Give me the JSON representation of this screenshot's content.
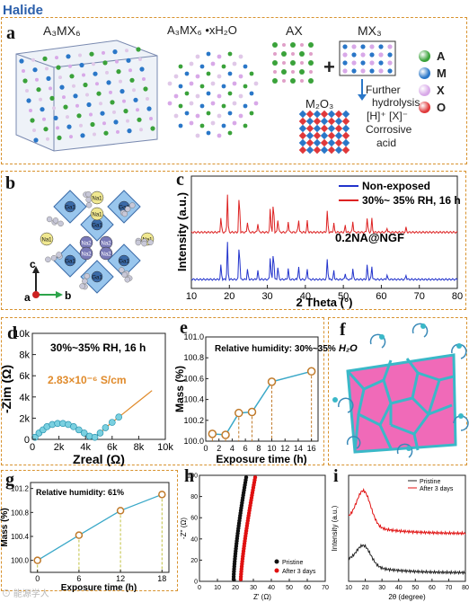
{
  "header": "Halide",
  "panel_letters": [
    "a",
    "b",
    "c",
    "d",
    "e",
    "f",
    "g",
    "h",
    "i"
  ],
  "panel_a": {
    "labels": [
      "A₃MX₆",
      "A₃MX₆ •xH₂O",
      "AX",
      "MX₃",
      "M₂O₃"
    ],
    "plus": "+",
    "hydrolysis": [
      "Further",
      "hydrolysis"
    ],
    "acid": [
      "[H]⁺  [X]⁻",
      "Corrosive",
      "acid"
    ],
    "legend": [
      {
        "label": "A",
        "color": "#3aa23a"
      },
      {
        "label": "M",
        "color": "#2a77c8"
      },
      {
        "label": "X",
        "color": "#d8a8e8"
      },
      {
        "label": "O",
        "color": "#e0383a"
      }
    ]
  },
  "panel_b": {
    "axis": {
      "c": "c",
      "a": "a",
      "b": "b"
    },
    "atoms": [
      "Ga1",
      "Ga1",
      "Ga1",
      "Ga1",
      "Ga1",
      "Ga1",
      "Na1",
      "Na2",
      "Na2",
      "Na1",
      "Na1",
      "Na1",
      "Na2",
      "Na2"
    ]
  },
  "chart_c": {
    "type": "line",
    "xlabel": "2 Theta (°)",
    "ylabel": "Intensity (a.u.)",
    "xlim": [
      10,
      80
    ],
    "xticks": [
      10,
      20,
      30,
      40,
      50,
      60,
      70,
      80
    ],
    "annotation": "0.2NA@NGF",
    "series": [
      {
        "name": "Non-exposed",
        "color": "#2233cc"
      },
      {
        "name": "30%~ 35% RH, 16 h",
        "color": "#dd2222"
      }
    ],
    "peaks": [
      {
        "x": 17.8,
        "h": 0.35
      },
      {
        "x": 19.5,
        "h": 0.85
      },
      {
        "x": 22.6,
        "h": 0.95
      },
      {
        "x": 24.8,
        "h": 0.25
      },
      {
        "x": 27.5,
        "h": 0.2
      },
      {
        "x": 30.8,
        "h": 0.55
      },
      {
        "x": 31.6,
        "h": 0.75
      },
      {
        "x": 32.8,
        "h": 0.3
      },
      {
        "x": 35.5,
        "h": 0.25
      },
      {
        "x": 38.2,
        "h": 0.3
      },
      {
        "x": 40.5,
        "h": 0.25
      },
      {
        "x": 45.8,
        "h": 0.5
      },
      {
        "x": 47.5,
        "h": 0.2
      },
      {
        "x": 50.5,
        "h": 0.15
      },
      {
        "x": 52.5,
        "h": 0.25
      },
      {
        "x": 56.3,
        "h": 0.35
      },
      {
        "x": 57.5,
        "h": 0.3
      },
      {
        "x": 61.5,
        "h": 0.1
      },
      {
        "x": 66.5,
        "h": 0.1
      }
    ]
  },
  "chart_d": {
    "type": "scatter",
    "title": "30%~35% RH, 16 h",
    "annotation": "2.83×10⁻⁶ S/cm",
    "xlabel": "Zreal (Ω)",
    "ylabel": "-Zim (Ω)",
    "xlim": [
      0,
      10000
    ],
    "ylim": [
      0,
      10000
    ],
    "xtick_labels": [
      "0",
      "2k",
      "4k",
      "6k",
      "8k",
      "10k"
    ],
    "ytick_labels": [
      "0",
      "2k",
      "4k",
      "6k",
      "8k",
      "10k"
    ],
    "x": [
      200,
      500,
      800,
      1100,
      1500,
      1900,
      2300,
      2700,
      3100,
      3500,
      3900,
      4300,
      4700,
      5100,
      5500,
      6000,
      6500,
      7000,
      7500,
      8000,
      8500,
      9000
    ],
    "y": [
      200,
      600,
      900,
      1200,
      1400,
      1500,
      1500,
      1400,
      1200,
      900,
      600,
      300,
      200,
      600,
      1100,
      1600,
      2100,
      2600,
      3100,
      3600,
      4100,
      4600
    ]
  },
  "chart_e": {
    "type": "line",
    "title": "Relative humidity: 30%~35%",
    "xlabel": "Exposure time (h)",
    "ylabel": "Mass (%)",
    "xlim": [
      0,
      17
    ],
    "ylim": [
      100.0,
      101.0
    ],
    "xticks": [
      0,
      2,
      4,
      6,
      8,
      10,
      12,
      14,
      16
    ],
    "ytick_labels": [
      "100.0",
      "100.2",
      "100.4",
      "100.6",
      "100.8",
      "101.0"
    ],
    "x": [
      1,
      3,
      5,
      7,
      10,
      16
    ],
    "y": [
      100.07,
      100.06,
      100.27,
      100.28,
      100.57,
      100.67
    ]
  },
  "panel_f": {
    "label": "H₂O"
  },
  "chart_g": {
    "type": "line",
    "title": "Relative humidity: 61%",
    "xlabel": "Exposure time (h)",
    "ylabel": "Mass (%)",
    "xlim": [
      -1,
      19
    ],
    "ylim": [
      99.8,
      101.3
    ],
    "xticks": [
      0,
      6,
      12,
      18
    ],
    "ytick_labels": [
      "100.0",
      "100.4",
      "100.8",
      "101.2"
    ],
    "x": [
      0,
      6,
      12,
      18
    ],
    "y": [
      100.0,
      100.42,
      100.83,
      101.1
    ]
  },
  "chart_h": {
    "type": "scatter",
    "xlabel": "Z' (Ω)",
    "ylabel": "-Z'' (Ω)",
    "xlim": [
      0,
      70
    ],
    "ylim": [
      0,
      100
    ],
    "xticks": [
      0,
      10,
      20,
      30,
      40,
      50,
      60,
      70
    ],
    "yticks": [
      0,
      20,
      40,
      60,
      80,
      100
    ],
    "series": [
      {
        "name": "Pristine",
        "color": "#111111"
      },
      {
        "name": "After 3 days",
        "color": "#e01010"
      }
    ]
  },
  "chart_i": {
    "type": "line",
    "xlabel": "2θ (degree)",
    "ylabel": "Intensity (a.u.)",
    "xlim": [
      10,
      80
    ],
    "xticks": [
      10,
      20,
      30,
      40,
      50,
      60,
      70,
      80
    ],
    "series": [
      {
        "name": "Pristine",
        "color": "#222222"
      },
      {
        "name": "After 3 days",
        "color": "#e01010"
      }
    ]
  },
  "watermark": "⊙ 能源学人"
}
